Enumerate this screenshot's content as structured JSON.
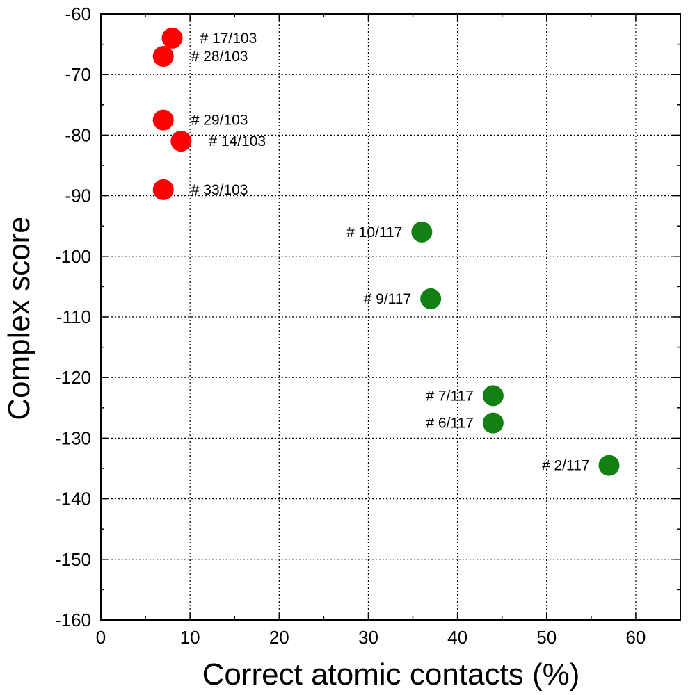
{
  "chart_data": {
    "type": "scatter",
    "xlabel": "Correct atomic contacts (%)",
    "ylabel": "Complex score",
    "xlim": [
      0,
      65
    ],
    "ylim": [
      -160,
      -60
    ],
    "xticks": [
      0,
      10,
      20,
      30,
      40,
      50,
      60
    ],
    "yticks": [
      -60,
      -70,
      -80,
      -90,
      -100,
      -110,
      -120,
      -130,
      -140,
      -150,
      -160
    ],
    "grid": true,
    "series": [
      {
        "color": "#ff0000",
        "label_side": "right",
        "points": [
          {
            "x": 8,
            "y": -64,
            "label": "# 17/103"
          },
          {
            "x": 7,
            "y": -67,
            "label": "# 28/103"
          },
          {
            "x": 7,
            "y": -77.5,
            "label": "# 29/103"
          },
          {
            "x": 9,
            "y": -81,
            "label": "# 14/103"
          },
          {
            "x": 7,
            "y": -89,
            "label": "# 33/103"
          }
        ]
      },
      {
        "color": "#138013",
        "label_side": "left",
        "points": [
          {
            "x": 36,
            "y": -96,
            "label": "# 10/117"
          },
          {
            "x": 37,
            "y": -107,
            "label": "# 9/117"
          },
          {
            "x": 44,
            "y": -123,
            "label": "# 7/117"
          },
          {
            "x": 44,
            "y": -127.5,
            "label": "# 6/117"
          },
          {
            "x": 57,
            "y": -134.5,
            "label": "# 2/117"
          }
        ]
      }
    ]
  }
}
